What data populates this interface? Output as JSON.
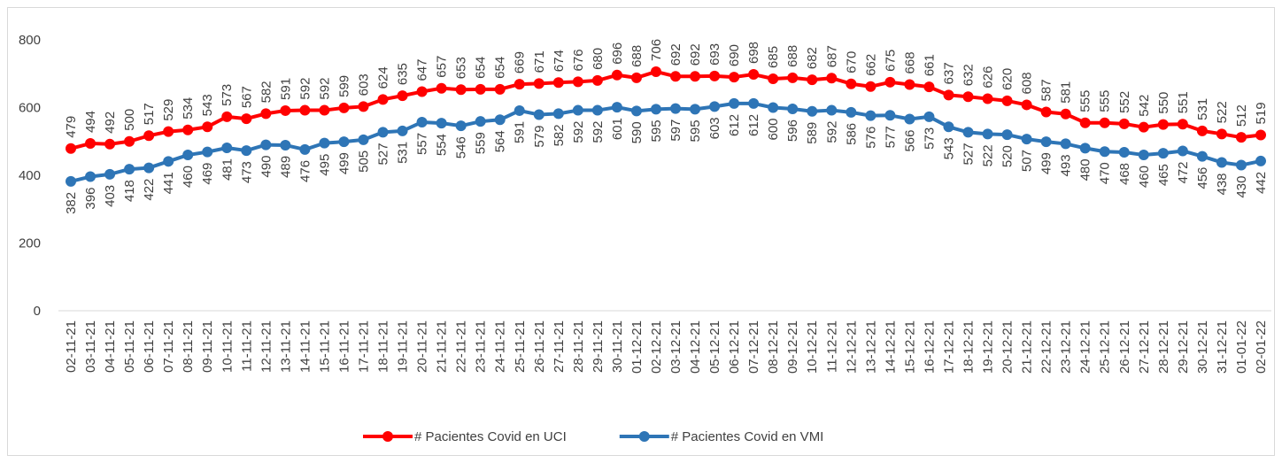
{
  "chart_data": {
    "type": "line",
    "categories": [
      "02-11-21",
      "03-11-21",
      "04-11-21",
      "05-11-21",
      "06-11-21",
      "07-11-21",
      "08-11-21",
      "09-11-21",
      "10-11-21",
      "11-11-21",
      "12-11-21",
      "13-11-21",
      "14-11-21",
      "15-11-21",
      "16-11-21",
      "17-11-21",
      "18-11-21",
      "19-11-21",
      "20-11-21",
      "21-11-21",
      "22-11-21",
      "23-11-21",
      "24-11-21",
      "25-11-21",
      "26-11-21",
      "27-11-21",
      "28-11-21",
      "29-11-21",
      "30-11-21",
      "01-12-21",
      "02-12-21",
      "03-12-21",
      "04-12-21",
      "05-12-21",
      "06-12-21",
      "07-12-21",
      "08-12-21",
      "09-12-21",
      "10-12-21",
      "11-12-21",
      "12-12-21",
      "13-12-21",
      "14-12-21",
      "15-12-21",
      "16-12-21",
      "17-12-21",
      "18-12-21",
      "19-12-21",
      "20-12-21",
      "21-12-21",
      "22-12-21",
      "23-12-21",
      "24-12-21",
      "25-12-21",
      "26-12-21",
      "27-12-21",
      "28-12-21",
      "29-12-21",
      "30-12-21",
      "31-12-21",
      "01-01-22",
      "02-01-22"
    ],
    "series": [
      {
        "name": "# Pacientes Covid en UCI",
        "color": "#ff0000",
        "values": [
          479,
          494,
          492,
          500,
          517,
          529,
          534,
          543,
          573,
          567,
          582,
          591,
          592,
          592,
          599,
          603,
          624,
          635,
          647,
          657,
          653,
          654,
          654,
          669,
          671,
          674,
          676,
          680,
          696,
          688,
          706,
          692,
          692,
          693,
          690,
          698,
          685,
          688,
          682,
          687,
          670,
          662,
          675,
          668,
          661,
          637,
          632,
          626,
          620,
          608,
          587,
          581,
          555,
          555,
          552,
          542,
          550,
          551,
          531,
          522,
          512,
          519
        ]
      },
      {
        "name": "# Pacientes Covid en VMI",
        "color": "#2e75b6",
        "values": [
          382,
          396,
          403,
          418,
          422,
          441,
          460,
          469,
          481,
          473,
          490,
          489,
          476,
          495,
          499,
          505,
          527,
          531,
          557,
          554,
          546,
          559,
          564,
          591,
          579,
          582,
          592,
          592,
          601,
          590,
          595,
          597,
          595,
          603,
          612,
          612,
          600,
          596,
          589,
          592,
          586,
          576,
          577,
          566,
          573,
          543,
          527,
          522,
          520,
          507,
          499,
          493,
          480,
          470,
          468,
          460,
          465,
          472,
          456,
          438,
          430,
          442
        ]
      }
    ],
    "ylim": [
      0,
      800
    ],
    "yticks": [
      0,
      200,
      400,
      600,
      800
    ],
    "grid": false,
    "legend": "bottom"
  }
}
